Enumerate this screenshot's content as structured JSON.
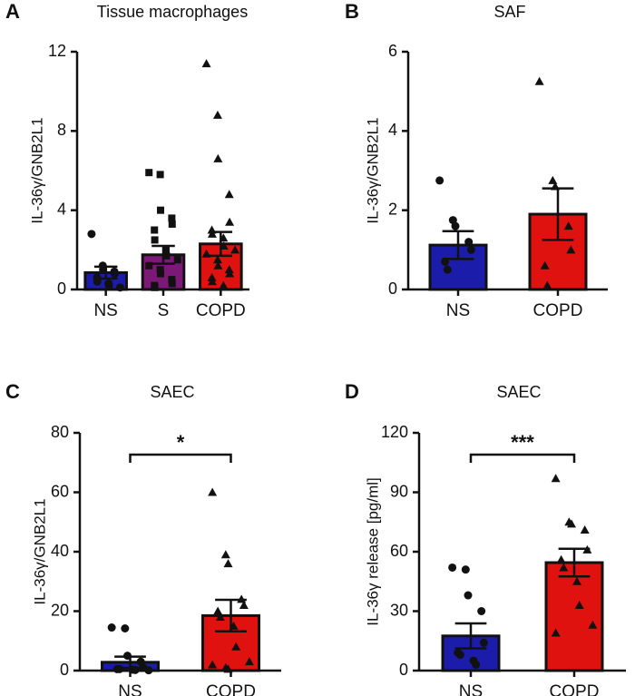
{
  "chart_data": [
    {
      "type": "bar",
      "panel": "A",
      "title": "Tissue macrophages",
      "y_label": "IL-36γ/GNB2L1",
      "categories": [
        "NS",
        "S",
        "COPD"
      ],
      "colors": [
        "#1c1caa",
        "#7b1878",
        "#e0120f"
      ],
      "markers": [
        "circle",
        "square",
        "triangle"
      ],
      "values": [
        0.85,
        1.75,
        2.3
      ],
      "errors": [
        0.3,
        0.45,
        0.6
      ],
      "points": [
        [
          2.8,
          1.2,
          1.0,
          0.9,
          0.8,
          0.6,
          0.4,
          0.3,
          0.2,
          0.1
        ],
        [
          5.9,
          5.8,
          4.0,
          3.6,
          3.3,
          3.0,
          2.5,
          2.0,
          1.7,
          1.5,
          1.2,
          1.0,
          0.8,
          0.5,
          0.3,
          0.2,
          0.1
        ],
        [
          11.4,
          8.8,
          6.6,
          4.8,
          3.4,
          3.0,
          2.8,
          2.6,
          2.2,
          2.0,
          1.8,
          1.5,
          1.2,
          1.0,
          0.8,
          0.6,
          0.4,
          0.2
        ]
      ],
      "ylim": [
        0,
        12
      ],
      "yticks": [
        0,
        4,
        8,
        12
      ]
    },
    {
      "type": "bar",
      "panel": "B",
      "title": "SAF",
      "y_label": "IL-36γ/GNB2L1",
      "categories": [
        "NS",
        "COPD"
      ],
      "colors": [
        "#1c1caa",
        "#e0120f"
      ],
      "markers": [
        "circle",
        "triangle"
      ],
      "values": [
        1.12,
        1.9
      ],
      "errors": [
        0.35,
        0.65
      ],
      "points": [
        [
          2.75,
          1.75,
          1.6,
          1.2,
          1.0,
          0.7,
          0.5
        ],
        [
          5.25,
          2.75,
          2.6,
          1.6,
          1.0,
          0.6,
          0.1
        ]
      ],
      "ylim": [
        0,
        6
      ],
      "yticks": [
        0,
        2,
        4,
        6
      ]
    },
    {
      "type": "bar",
      "panel": "C",
      "title": "SAEC",
      "y_label": "IL-36γ/GNB2L1",
      "categories": [
        "NS",
        "COPD"
      ],
      "colors": [
        "#1c1caa",
        "#e0120f"
      ],
      "markers": [
        "circle",
        "triangle"
      ],
      "values": [
        2.8,
        18.5
      ],
      "errors": [
        1.9,
        5.3
      ],
      "points": [
        [
          14.5,
          14.2,
          5,
          3,
          1,
          0.5,
          0.5,
          0.3,
          0.2,
          0.1
        ],
        [
          60,
          39,
          36,
          24,
          22,
          20,
          18,
          15,
          8,
          3,
          2,
          1,
          0.5
        ]
      ],
      "significance": "*",
      "ylim": [
        0,
        80
      ],
      "yticks": [
        0,
        20,
        40,
        60,
        80
      ]
    },
    {
      "type": "bar",
      "panel": "D",
      "title": "SAEC",
      "y_label": "IL-36γ release [pg/ml]",
      "categories": [
        "NS",
        "COPD"
      ],
      "colors": [
        "#1c1caa",
        "#e0120f"
      ],
      "markers": [
        "circle",
        "triangle"
      ],
      "values": [
        17.5,
        54.5
      ],
      "errors": [
        6.3,
        7
      ],
      "points": [
        [
          52,
          51,
          38,
          30,
          14,
          9,
          8,
          5,
          3
        ],
        [
          97,
          75,
          74,
          71,
          61,
          56,
          52,
          45,
          33,
          23,
          19
        ]
      ],
      "significance": "***",
      "ylim": [
        0,
        120
      ],
      "yticks": [
        0,
        30,
        60,
        90,
        120
      ]
    }
  ]
}
